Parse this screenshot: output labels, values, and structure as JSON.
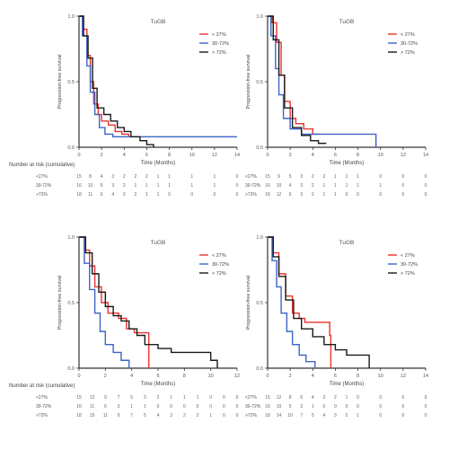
{
  "colors": {
    "red": "#e8332f",
    "blue": "#3b64c8",
    "black": "#1a1a1a",
    "axis": "#333333"
  },
  "chart_data": [
    {
      "type": "line",
      "title": "TuGB",
      "xlabel": "Time (Months)",
      "ylabel": "Progression-free survival",
      "xlim": [
        0,
        14
      ],
      "ylim": [
        0,
        1.0
      ],
      "xticks": [
        0,
        2,
        4,
        6,
        8,
        10,
        12,
        14
      ],
      "yticks": [
        0.0,
        0.5,
        1.0
      ],
      "legend": [
        "< 27%",
        "30-72%",
        "> 72%"
      ],
      "legend_position": "top-right",
      "series": [
        {
          "name": "< 27%",
          "x": [
            0,
            0.4,
            0.7,
            1.0,
            1.3,
            1.7,
            2.0,
            2.6,
            3.2,
            3.8,
            4.4,
            5.0
          ],
          "y": [
            1.0,
            0.9,
            0.7,
            0.5,
            0.33,
            0.25,
            0.2,
            0.17,
            0.12,
            0.1,
            0.08,
            0.08
          ]
        },
        {
          "name": "30-72%",
          "x": [
            0,
            0.3,
            0.7,
            1.0,
            1.4,
            1.8,
            2.3,
            3.0,
            14.0
          ],
          "y": [
            1.0,
            0.85,
            0.62,
            0.42,
            0.25,
            0.15,
            0.1,
            0.08,
            0.08
          ]
        },
        {
          "name": "> 72%",
          "x": [
            0,
            0.4,
            0.8,
            1.2,
            1.6,
            2.2,
            2.8,
            3.4,
            4.0,
            4.6,
            5.4,
            6.0,
            6.6
          ],
          "y": [
            1.0,
            0.85,
            0.68,
            0.45,
            0.3,
            0.25,
            0.2,
            0.15,
            0.12,
            0.08,
            0.05,
            0.02,
            0.0
          ]
        }
      ],
      "risk_table": {
        "title": "Number at risk (cumulative)",
        "times": [
          0,
          1,
          2,
          3,
          4,
          5,
          6,
          7,
          8,
          10,
          12,
          14
        ],
        "rows": [
          {
            "label": "<27%",
            "values": [
              "15",
              "8",
              "4",
              "3",
              "2",
              "2",
              "2",
              "1",
              "1",
              "1",
              "1",
              "0"
            ]
          },
          {
            "label": "30-72%",
            "values": [
              "16",
              "10",
              "5",
              "3",
              "2",
              "1",
              "1",
              "1",
              "1",
              "1",
              "1",
              "0"
            ]
          },
          {
            "label": ">72%",
            "values": [
              "18",
              "11",
              "6",
              "4",
              "3",
              "2",
              "1",
              "1",
              "0",
              "0",
              "0",
              "0"
            ]
          }
        ]
      }
    },
    {
      "type": "line",
      "title": "TuGB",
      "xlabel": "Time (Months)",
      "ylabel": "Progression-free survival",
      "xlim": [
        0,
        14
      ],
      "ylim": [
        0,
        1.0
      ],
      "xticks": [
        0,
        2,
        4,
        6,
        8,
        10,
        12,
        14
      ],
      "yticks": [
        0.0,
        0.5,
        1.0
      ],
      "legend": [
        "< 27%",
        "30-72%",
        "> 72%"
      ],
      "legend_position": "top-right",
      "series": [
        {
          "name": "< 27%",
          "x": [
            0,
            0.4,
            0.8,
            1.2,
            1.5,
            2.0,
            2.5,
            3.2,
            4.0,
            4.6
          ],
          "y": [
            1.0,
            0.95,
            0.8,
            0.55,
            0.35,
            0.22,
            0.18,
            0.14,
            0.1,
            0.1
          ]
        },
        {
          "name": "30-72%",
          "x": [
            0,
            0.3,
            0.7,
            1.0,
            1.4,
            2.0,
            3.0,
            9.5,
            9.6
          ],
          "y": [
            1.0,
            0.85,
            0.6,
            0.4,
            0.22,
            0.14,
            0.1,
            0.1,
            0.0
          ]
        },
        {
          "name": "> 72%",
          "x": [
            0,
            0.5,
            1.0,
            1.5,
            2.2,
            3.0,
            3.8,
            4.5,
            5.2
          ],
          "y": [
            1.0,
            0.82,
            0.55,
            0.3,
            0.15,
            0.09,
            0.05,
            0.03,
            0.03
          ]
        }
      ],
      "risk_table": {
        "title": "",
        "times": [
          0,
          1,
          2,
          3,
          4,
          5,
          6,
          7,
          8,
          10,
          12,
          14
        ],
        "rows": [
          {
            "label": "<27%",
            "values": [
              "15",
              "9",
              "5",
              "3",
              "2",
              "2",
              "1",
              "1",
              "1",
              "0",
              "0",
              "0"
            ]
          },
          {
            "label": "30-72%",
            "values": [
              "16",
              "10",
              "4",
              "3",
              "2",
              "1",
              "1",
              "1",
              "1",
              "1",
              "0",
              "0"
            ]
          },
          {
            "label": ">72%",
            "values": [
              "18",
              "12",
              "6",
              "3",
              "2",
              "1",
              "1",
              "0",
              "0",
              "0",
              "0",
              "0"
            ]
          }
        ]
      }
    },
    {
      "type": "line",
      "title": "TuGB",
      "xlabel": "Time (Months)",
      "ylabel": "Progression-free survival",
      "xlim": [
        0,
        12
      ],
      "ylim": [
        0,
        1.0
      ],
      "xticks": [
        0,
        2,
        4,
        6,
        8,
        10,
        12
      ],
      "yticks": [
        0.0,
        0.5,
        1.0
      ],
      "legend": [
        "< 27%",
        "30-72%",
        "> 72%"
      ],
      "legend_position": "top-right",
      "series": [
        {
          "name": "< 27%",
          "x": [
            0,
            0.4,
            0.8,
            1.2,
            1.7,
            2.2,
            3.0,
            3.6,
            4.2,
            4.6,
            5.2,
            5.3
          ],
          "y": [
            1.0,
            0.9,
            0.78,
            0.62,
            0.5,
            0.42,
            0.38,
            0.3,
            0.27,
            0.27,
            0.27,
            0.0
          ]
        },
        {
          "name": "30-72%",
          "x": [
            0,
            0.4,
            0.8,
            1.2,
            1.6,
            2.0,
            2.6,
            3.2,
            3.8
          ],
          "y": [
            1.0,
            0.8,
            0.6,
            0.42,
            0.28,
            0.18,
            0.12,
            0.06,
            0.0
          ]
        },
        {
          "name": "> 72%",
          "x": [
            0,
            0.5,
            1.0,
            1.5,
            2.0,
            2.6,
            3.2,
            3.8,
            4.4,
            5.0,
            6.0,
            7.0,
            8.0,
            10.0,
            10.5
          ],
          "y": [
            1.0,
            0.88,
            0.72,
            0.58,
            0.47,
            0.4,
            0.36,
            0.3,
            0.25,
            0.18,
            0.15,
            0.12,
            0.12,
            0.06,
            0.0
          ]
        }
      ],
      "risk_table": {
        "title": "Number at risk (cumulative)",
        "times": [
          0,
          1,
          2,
          3,
          4,
          5,
          6,
          7,
          8,
          9,
          10,
          11,
          12
        ],
        "rows": [
          {
            "label": "<27%",
            "values": [
              "15",
              "12",
              "9",
              "7",
              "5",
              "3",
              "2",
              "1",
              "1",
              "1",
              "0",
              "0",
              "0"
            ]
          },
          {
            "label": "30-72%",
            "values": [
              "16",
              "11",
              "6",
              "3",
              "1",
              "1",
              "0",
              "0",
              "0",
              "0",
              "0",
              "0",
              "0"
            ]
          },
          {
            "label": ">72%",
            "values": [
              "18",
              "15",
              "11",
              "9",
              "7",
              "5",
              "4",
              "3",
              "2",
              "2",
              "1",
              "0",
              "0"
            ]
          }
        ]
      }
    },
    {
      "type": "line",
      "title": "TuGB",
      "xlabel": "Time (Months)",
      "ylabel": "Progression-free survival",
      "xlim": [
        0,
        14
      ],
      "ylim": [
        0,
        1.0
      ],
      "xticks": [
        0,
        2,
        4,
        6,
        8,
        10,
        12,
        14
      ],
      "yticks": [
        0.0,
        0.5,
        1.0
      ],
      "legend": [
        "< 27%",
        "30-72%",
        "> 72%"
      ],
      "legend_position": "top-right",
      "series": [
        {
          "name": "< 27%",
          "x": [
            0,
            0.5,
            1.0,
            1.6,
            2.2,
            2.8,
            3.3,
            5.5,
            5.6
          ],
          "y": [
            1.0,
            0.88,
            0.72,
            0.55,
            0.42,
            0.38,
            0.35,
            0.25,
            0.0
          ]
        },
        {
          "name": "30-72%",
          "x": [
            0,
            0.4,
            0.8,
            1.2,
            1.7,
            2.2,
            2.8,
            3.4,
            4.2
          ],
          "y": [
            1.0,
            0.82,
            0.62,
            0.42,
            0.28,
            0.18,
            0.1,
            0.05,
            0.0
          ]
        },
        {
          "name": "> 72%",
          "x": [
            0,
            0.5,
            1.0,
            1.6,
            2.3,
            3.0,
            4.0,
            5.0,
            6.0,
            7.0,
            8.0,
            9.0
          ],
          "y": [
            1.0,
            0.85,
            0.7,
            0.52,
            0.38,
            0.3,
            0.24,
            0.18,
            0.14,
            0.1,
            0.1,
            0.0
          ]
        }
      ],
      "risk_table": {
        "title": "",
        "times": [
          0,
          1,
          2,
          3,
          4,
          5,
          6,
          7,
          8,
          10,
          12,
          14
        ],
        "rows": [
          {
            "label": "<27%",
            "values": [
              "15",
              "12",
              "8",
              "6",
              "4",
              "3",
              "2",
              "1",
              "0",
              "0",
              "0",
              "0"
            ]
          },
          {
            "label": "30-72%",
            "values": [
              "16",
              "10",
              "5",
              "2",
              "1",
              "0",
              "0",
              "0",
              "0",
              "0",
              "0",
              "0"
            ]
          },
          {
            "label": ">72%",
            "values": [
              "18",
              "14",
              "10",
              "7",
              "5",
              "4",
              "3",
              "2",
              "1",
              "0",
              "0",
              "0"
            ]
          }
        ]
      }
    }
  ]
}
